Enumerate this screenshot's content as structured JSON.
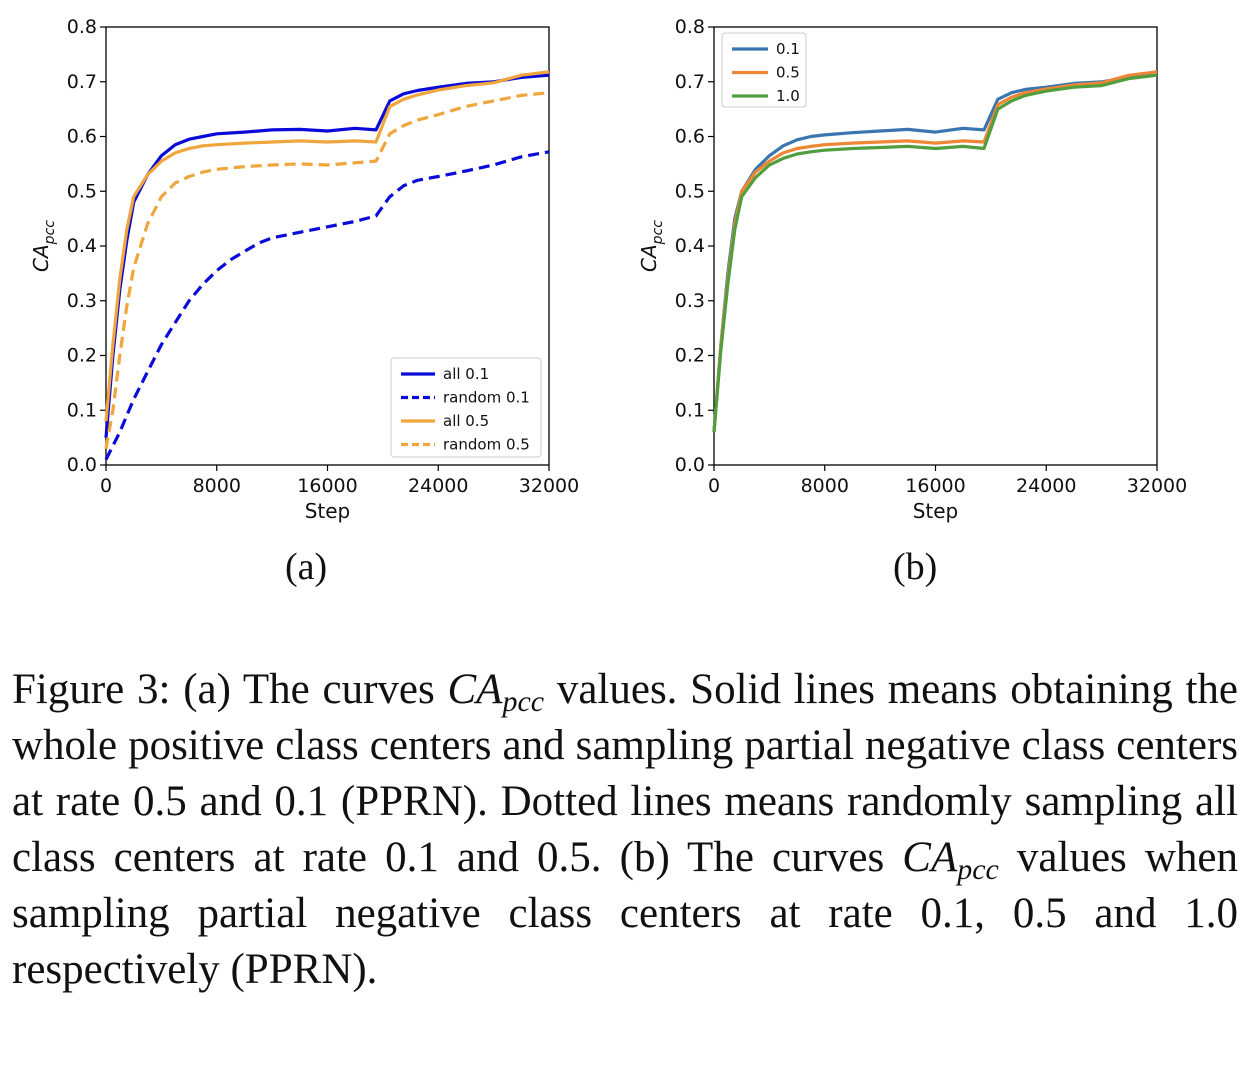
{
  "figure": {
    "panel_labels": [
      "(a)",
      "(b)"
    ],
    "caption": {
      "p1": "Figure 3: (a) The curves ",
      "math_main": "CA",
      "math_sub": "pcc",
      "p2": " values. Solid lines means obtaining the whole positive class centers and sampling partial negative class centers at rate 0.5 and 0.1 (PPRN). Dotted lines means randomly sampling all class centers at rate 0.1 and 0.5. (b) The curves ",
      "p3": " values when sampling partial negative class centers at rate 0.1, 0.5 and 1.0 respectively (PPRN)."
    }
  },
  "chart_data": [
    {
      "type": "line",
      "xlabel": "Step",
      "ylabel_main": "CA",
      "ylabel_sub": "pcc",
      "xlim": [
        0,
        32000
      ],
      "ylim": [
        0,
        0.8
      ],
      "xticks": [
        0,
        8000,
        16000,
        24000,
        32000
      ],
      "xtick_labels": [
        "0",
        "8000",
        "16000",
        "24000",
        "32000"
      ],
      "yticks": [
        0,
        0.1,
        0.2,
        0.3,
        0.4,
        0.5,
        0.6,
        0.7,
        0.8
      ],
      "ytick_labels": [
        "0.0",
        "0.1",
        "0.2",
        "0.3",
        "0.4",
        "0.5",
        "0.6",
        "0.7",
        "0.8"
      ],
      "grid": false,
      "legend_position": "lower-right",
      "series": [
        {
          "name": "all 0.1",
          "color": "#0b0bd9",
          "dash": "solid",
          "x": [
            0,
            500,
            1000,
            1500,
            2000,
            3000,
            4000,
            5000,
            6000,
            7000,
            8000,
            10000,
            12000,
            14000,
            16000,
            18000,
            19500,
            20500,
            21500,
            22500,
            24000,
            26000,
            28000,
            30000,
            32000
          ],
          "y": [
            0.05,
            0.2,
            0.32,
            0.41,
            0.48,
            0.53,
            0.565,
            0.585,
            0.595,
            0.6,
            0.605,
            0.608,
            0.612,
            0.613,
            0.61,
            0.615,
            0.612,
            0.665,
            0.678,
            0.684,
            0.69,
            0.697,
            0.7,
            0.708,
            0.712
          ]
        },
        {
          "name": "random 0.1",
          "color": "#0b0bd9",
          "dash": "dashed",
          "x": [
            0,
            1000,
            2000,
            3000,
            4000,
            5000,
            6000,
            7000,
            8000,
            9000,
            10000,
            11000,
            12000,
            14000,
            16000,
            18000,
            19500,
            20500,
            21500,
            22500,
            24000,
            26000,
            28000,
            30000,
            32000
          ],
          "y": [
            0.01,
            0.06,
            0.12,
            0.17,
            0.22,
            0.26,
            0.3,
            0.33,
            0.355,
            0.375,
            0.39,
            0.405,
            0.415,
            0.425,
            0.435,
            0.445,
            0.455,
            0.49,
            0.51,
            0.52,
            0.527,
            0.537,
            0.548,
            0.563,
            0.572
          ]
        },
        {
          "name": "all 0.5",
          "color": "#f0a53d",
          "dash": "solid",
          "x": [
            0,
            500,
            1000,
            1500,
            2000,
            3000,
            4000,
            5000,
            6000,
            7000,
            8000,
            10000,
            12000,
            14000,
            16000,
            18000,
            19500,
            20500,
            21500,
            22500,
            24000,
            26000,
            28000,
            30000,
            32000
          ],
          "y": [
            0.08,
            0.22,
            0.34,
            0.43,
            0.49,
            0.53,
            0.555,
            0.57,
            0.578,
            0.583,
            0.585,
            0.588,
            0.59,
            0.592,
            0.59,
            0.592,
            0.59,
            0.655,
            0.668,
            0.676,
            0.685,
            0.693,
            0.698,
            0.712,
            0.718
          ]
        },
        {
          "name": "random 0.5",
          "color": "#f0a53d",
          "dash": "dashed",
          "x": [
            0,
            500,
            1000,
            1500,
            2000,
            3000,
            4000,
            5000,
            6000,
            7000,
            8000,
            10000,
            12000,
            14000,
            16000,
            18000,
            19500,
            20500,
            21500,
            22500,
            24000,
            26000,
            28000,
            30000,
            32000
          ],
          "y": [
            0.03,
            0.1,
            0.2,
            0.29,
            0.36,
            0.44,
            0.49,
            0.515,
            0.527,
            0.535,
            0.54,
            0.545,
            0.548,
            0.55,
            0.548,
            0.552,
            0.555,
            0.605,
            0.62,
            0.63,
            0.64,
            0.655,
            0.665,
            0.675,
            0.68
          ]
        }
      ]
    },
    {
      "type": "line",
      "xlabel": "Step",
      "ylabel_main": "CA",
      "ylabel_sub": "pcc",
      "xlim": [
        0,
        32000
      ],
      "ylim": [
        0,
        0.8
      ],
      "xticks": [
        0,
        8000,
        16000,
        24000,
        32000
      ],
      "xtick_labels": [
        "0",
        "8000",
        "16000",
        "24000",
        "32000"
      ],
      "yticks": [
        0,
        0.1,
        0.2,
        0.3,
        0.4,
        0.5,
        0.6,
        0.7,
        0.8
      ],
      "ytick_labels": [
        "0.0",
        "0.1",
        "0.2",
        "0.3",
        "0.4",
        "0.5",
        "0.6",
        "0.7",
        "0.8"
      ],
      "grid": false,
      "legend_position": "upper-left",
      "series": [
        {
          "name": "0.1",
          "color": "#3b75af",
          "dash": "solid",
          "x": [
            0,
            500,
            1000,
            1500,
            2000,
            3000,
            4000,
            5000,
            6000,
            7000,
            8000,
            10000,
            12000,
            14000,
            16000,
            18000,
            19500,
            20500,
            21500,
            22500,
            24000,
            26000,
            28000,
            30000,
            32000
          ],
          "y": [
            0.06,
            0.22,
            0.35,
            0.45,
            0.5,
            0.54,
            0.565,
            0.583,
            0.594,
            0.6,
            0.603,
            0.607,
            0.61,
            0.613,
            0.608,
            0.615,
            0.612,
            0.668,
            0.68,
            0.686,
            0.69,
            0.697,
            0.7,
            0.708,
            0.712
          ]
        },
        {
          "name": "0.5",
          "color": "#ef8636",
          "dash": "solid",
          "x": [
            0,
            500,
            1000,
            1500,
            2000,
            3000,
            4000,
            5000,
            6000,
            7000,
            8000,
            10000,
            12000,
            14000,
            16000,
            18000,
            19500,
            20500,
            21500,
            22500,
            24000,
            26000,
            28000,
            30000,
            32000
          ],
          "y": [
            0.06,
            0.22,
            0.34,
            0.44,
            0.5,
            0.535,
            0.555,
            0.57,
            0.578,
            0.582,
            0.585,
            0.588,
            0.59,
            0.592,
            0.588,
            0.592,
            0.59,
            0.658,
            0.672,
            0.68,
            0.687,
            0.694,
            0.698,
            0.712,
            0.718
          ]
        },
        {
          "name": "1.0",
          "color": "#519e3e",
          "dash": "solid",
          "x": [
            0,
            500,
            1000,
            1500,
            2000,
            3000,
            4000,
            5000,
            6000,
            7000,
            8000,
            10000,
            12000,
            14000,
            16000,
            18000,
            19500,
            20500,
            21500,
            22500,
            24000,
            26000,
            28000,
            30000,
            32000
          ],
          "y": [
            0.06,
            0.21,
            0.33,
            0.43,
            0.49,
            0.525,
            0.548,
            0.56,
            0.568,
            0.572,
            0.575,
            0.578,
            0.58,
            0.582,
            0.578,
            0.582,
            0.578,
            0.65,
            0.665,
            0.675,
            0.683,
            0.69,
            0.693,
            0.706,
            0.712
          ]
        }
      ]
    }
  ]
}
